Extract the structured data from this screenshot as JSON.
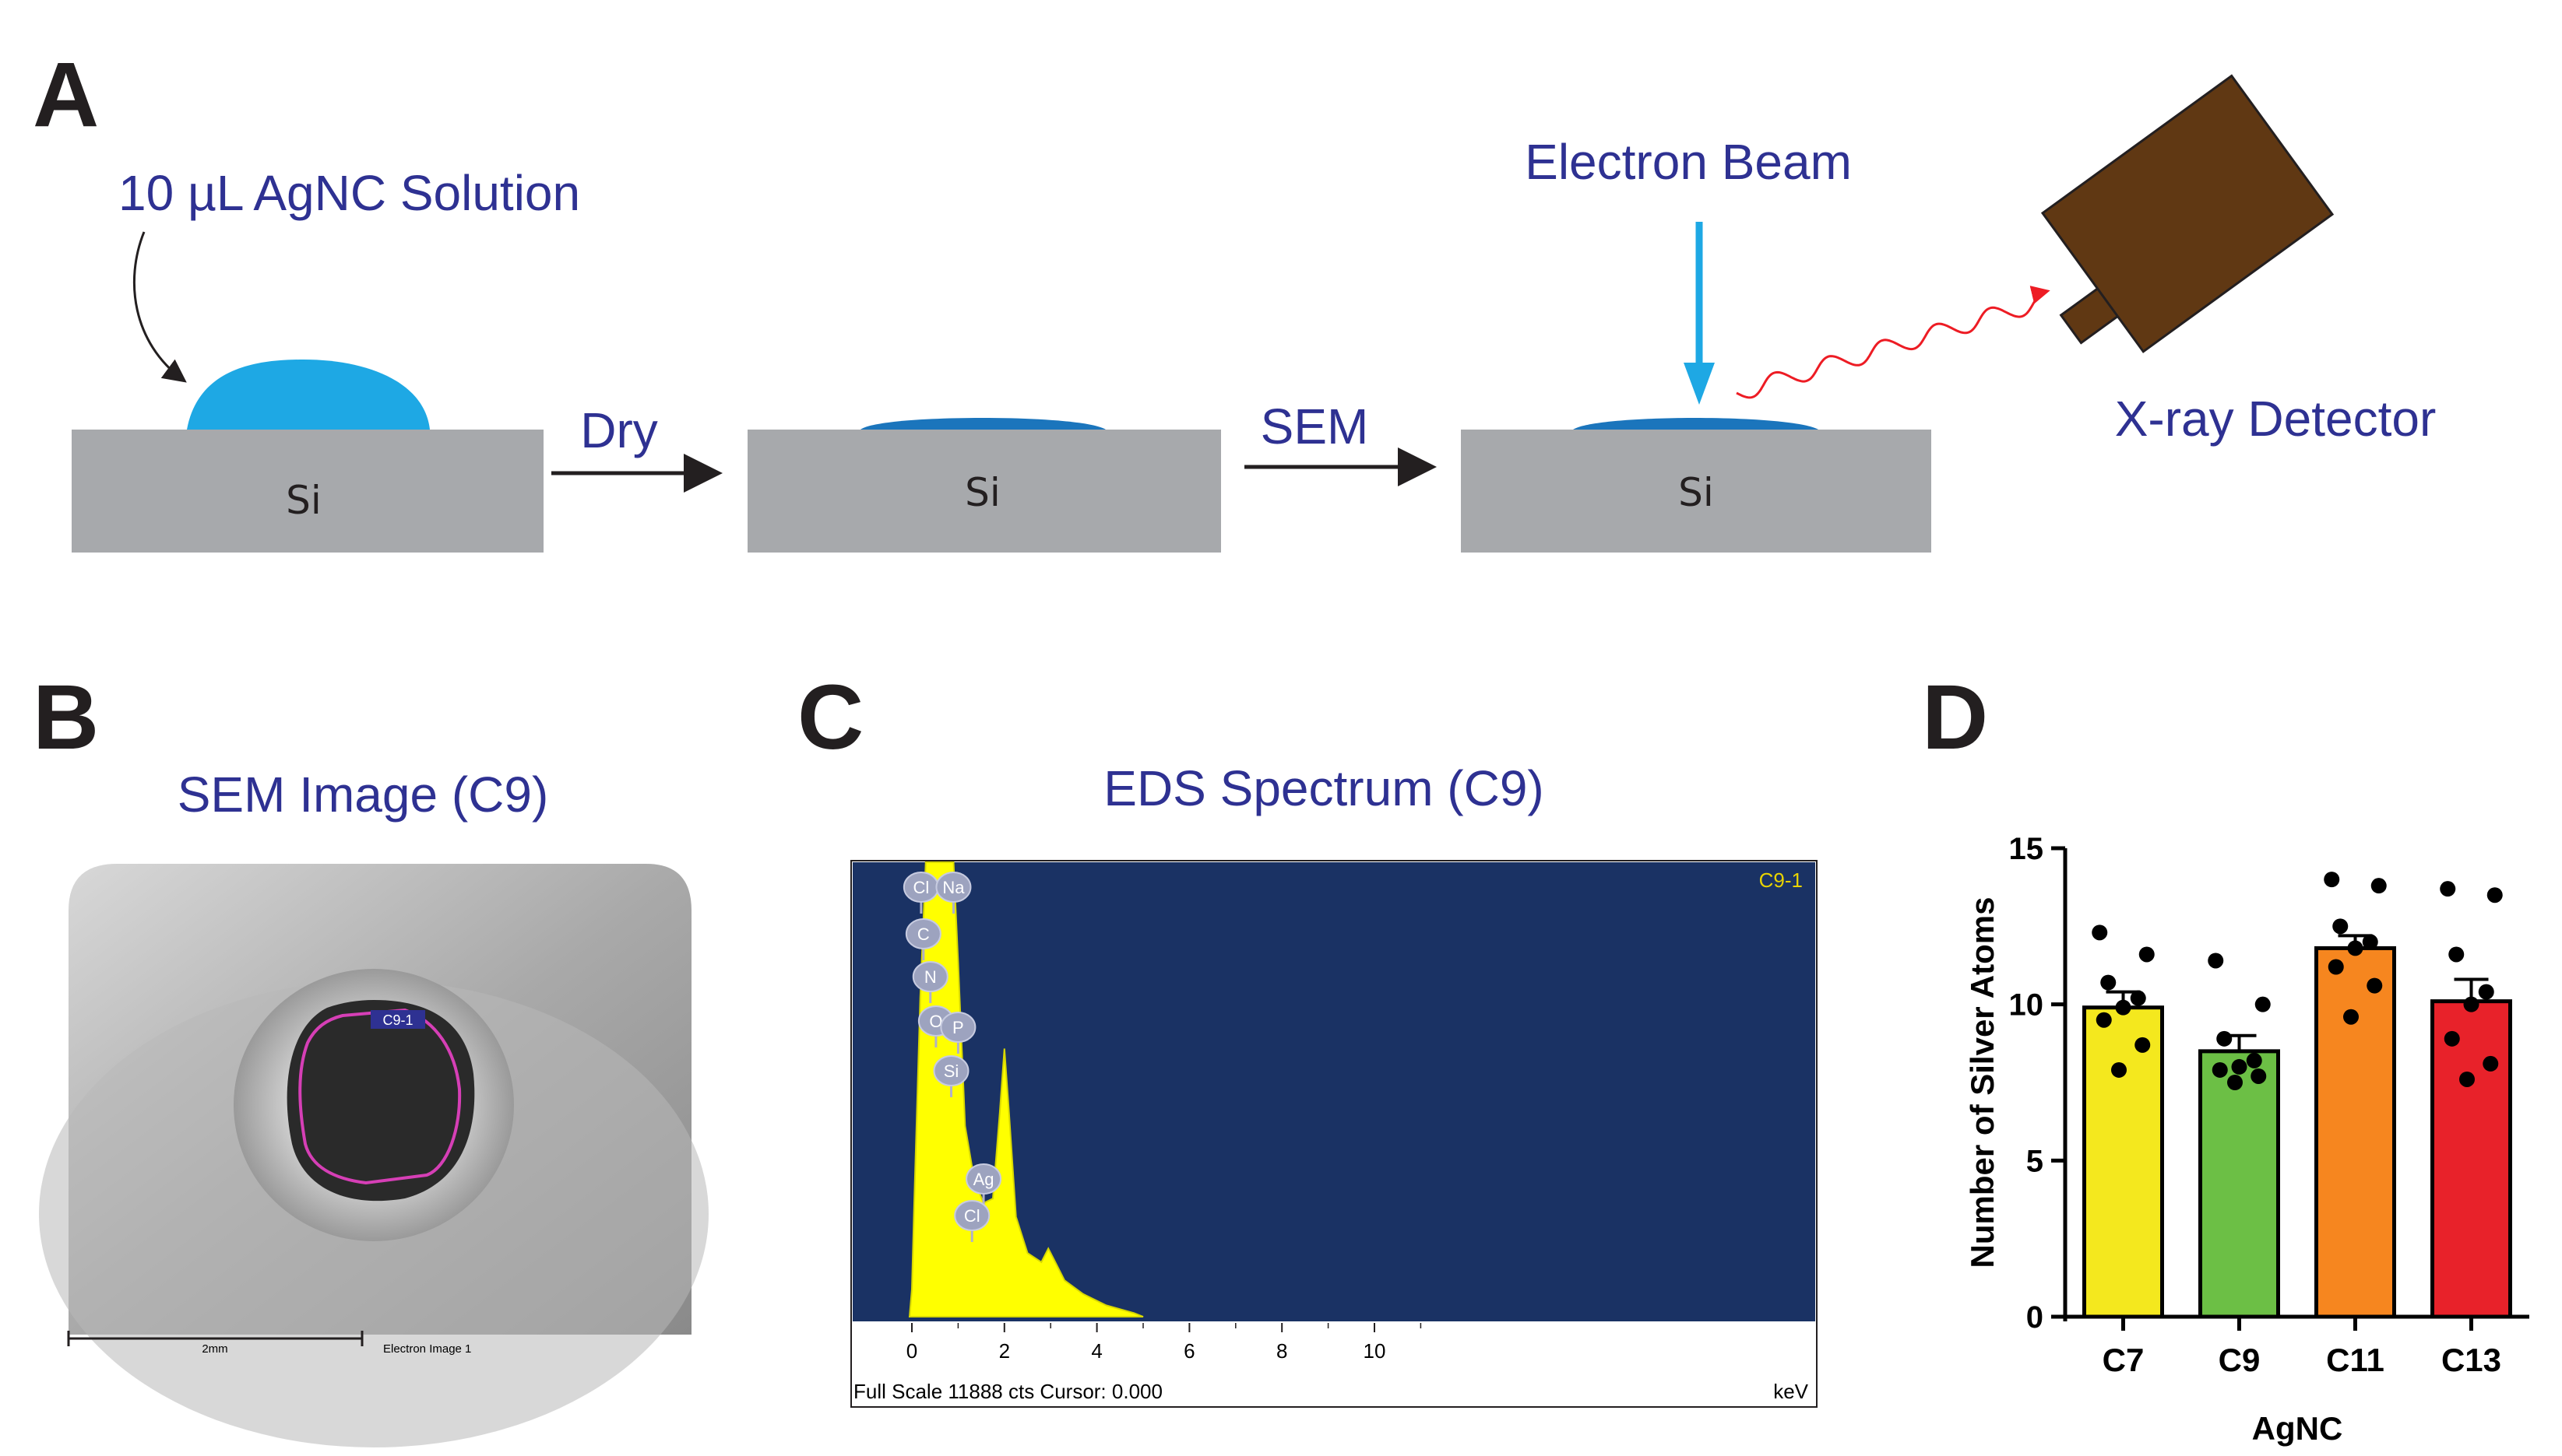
{
  "panel_letters": {
    "a": "A",
    "b": "B",
    "c": "C",
    "d": "D"
  },
  "panel_a": {
    "drop_label": "10 µL AgNC Solution",
    "step1_label": "Dry",
    "step2_label": "SEM",
    "substrate_label": "Si",
    "beam_label": "Electron Beam",
    "detector_label": "X-ray Detector"
  },
  "panel_b": {
    "title": "SEM Image (C9)",
    "roi_label": "C9-1",
    "scale_label": "2mm",
    "image_caption": "Electron Image 1"
  },
  "panel_c": {
    "title": "EDS Spectrum (C9)",
    "spectrum_label": "C9-1",
    "x_ticks": [
      "0",
      "2",
      "4",
      "6",
      "8",
      "10"
    ],
    "x_unit": "keV",
    "status": "Full Scale 11888 cts Cursor: 0.000",
    "peaks": [
      "Cl",
      "Na",
      "C",
      "N",
      "O",
      "P",
      "Si",
      "Ag",
      "Cl"
    ]
  },
  "chart_data": {
    "type": "bar",
    "title": "",
    "xlabel": "AgNC",
    "ylabel": "Number of  Silver Atoms",
    "ylim": [
      0,
      15
    ],
    "yticks": [
      0,
      5,
      10,
      15
    ],
    "categories": [
      "C7",
      "C9",
      "C11",
      "C13"
    ],
    "values": [
      9.9,
      8.5,
      11.8,
      10.1
    ],
    "errors": [
      0.5,
      0.5,
      0.4,
      0.7
    ],
    "colors": [
      "#f4e81e",
      "#6cbf45",
      "#f6861f",
      "#e8222a"
    ],
    "points": [
      [
        12.3,
        11.6,
        10.7,
        10.2,
        9.9,
        9.5,
        8.7,
        7.9
      ],
      [
        11.4,
        10.0,
        8.9,
        8.2,
        8.0,
        7.9,
        7.7,
        7.5
      ],
      [
        14.0,
        13.8,
        12.5,
        12.0,
        11.8,
        11.2,
        10.6,
        9.6
      ],
      [
        13.7,
        13.5,
        11.6,
        10.4,
        10.0,
        8.9,
        8.1,
        7.6
      ]
    ]
  }
}
